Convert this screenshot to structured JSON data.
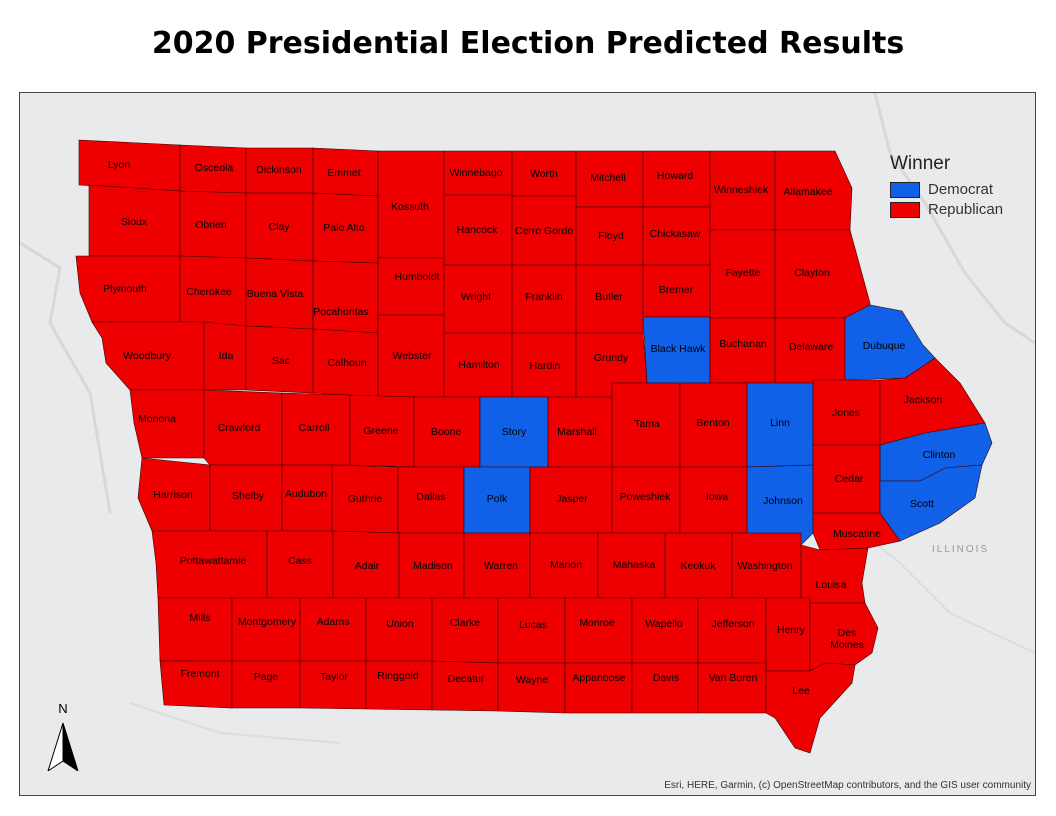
{
  "title": "2020 Presidential Election Predicted Results",
  "legend": {
    "title": "Winner",
    "items": [
      {
        "label": "Democrat",
        "color": "#1060e8"
      },
      {
        "label": "Republican",
        "color": "#ee0000"
      }
    ]
  },
  "north_label": "N",
  "neighbor_state_label": "ILLINOIS",
  "attribution": "Esri, HERE, Garmin, (c) OpenStreetMap contributors, and the GIS user community",
  "counties": [
    {
      "name": "Lyon",
      "winner": "Republican"
    },
    {
      "name": "Osceola",
      "winner": "Republican"
    },
    {
      "name": "Dickinson",
      "winner": "Republican"
    },
    {
      "name": "Emmet",
      "winner": "Republican"
    },
    {
      "name": "Kossuth",
      "winner": "Republican"
    },
    {
      "name": "Winnebago",
      "winner": "Republican"
    },
    {
      "name": "Worth",
      "winner": "Republican"
    },
    {
      "name": "Mitchell",
      "winner": "Republican"
    },
    {
      "name": "Howard",
      "winner": "Republican"
    },
    {
      "name": "Winneshiek",
      "winner": "Republican"
    },
    {
      "name": "Allamakee",
      "winner": "Republican"
    },
    {
      "name": "Sioux",
      "winner": "Republican"
    },
    {
      "name": "Obrien",
      "winner": "Republican"
    },
    {
      "name": "Clay",
      "winner": "Republican"
    },
    {
      "name": "Palo Alto",
      "winner": "Republican"
    },
    {
      "name": "Hancock",
      "winner": "Republican"
    },
    {
      "name": "Cerro Gordo",
      "winner": "Republican"
    },
    {
      "name": "Floyd",
      "winner": "Republican"
    },
    {
      "name": "Chickasaw",
      "winner": "Republican"
    },
    {
      "name": "Fayette",
      "winner": "Republican"
    },
    {
      "name": "Clayton",
      "winner": "Republican"
    },
    {
      "name": "Plymouth",
      "winner": "Republican"
    },
    {
      "name": "Cherokee",
      "winner": "Republican"
    },
    {
      "name": "Buena Vista",
      "winner": "Republican"
    },
    {
      "name": "Pocahontas",
      "winner": "Republican"
    },
    {
      "name": "Humboldt",
      "winner": "Republican"
    },
    {
      "name": "Wright",
      "winner": "Republican"
    },
    {
      "name": "Franklin",
      "winner": "Republican"
    },
    {
      "name": "Butler",
      "winner": "Republican"
    },
    {
      "name": "Bremer",
      "winner": "Republican"
    },
    {
      "name": "Black Hawk",
      "winner": "Democrat"
    },
    {
      "name": "Buchanan",
      "winner": "Republican"
    },
    {
      "name": "Delaware",
      "winner": "Republican"
    },
    {
      "name": "Dubuque",
      "winner": "Democrat"
    },
    {
      "name": "Woodbury",
      "winner": "Republican"
    },
    {
      "name": "Ida",
      "winner": "Republican"
    },
    {
      "name": "Sac",
      "winner": "Republican"
    },
    {
      "name": "Calhoun",
      "winner": "Republican"
    },
    {
      "name": "Webster",
      "winner": "Republican"
    },
    {
      "name": "Hamilton",
      "winner": "Republican"
    },
    {
      "name": "Hardin",
      "winner": "Republican"
    },
    {
      "name": "Grundy",
      "winner": "Republican"
    },
    {
      "name": "Monona",
      "winner": "Republican"
    },
    {
      "name": "Crawford",
      "winner": "Republican"
    },
    {
      "name": "Carroll",
      "winner": "Republican"
    },
    {
      "name": "Greene",
      "winner": "Republican"
    },
    {
      "name": "Boone",
      "winner": "Republican"
    },
    {
      "name": "Story",
      "winner": "Democrat"
    },
    {
      "name": "Marshall",
      "winner": "Republican"
    },
    {
      "name": "Tama",
      "winner": "Republican"
    },
    {
      "name": "Benton",
      "winner": "Republican"
    },
    {
      "name": "Linn",
      "winner": "Democrat"
    },
    {
      "name": "Jones",
      "winner": "Republican"
    },
    {
      "name": "Jackson",
      "winner": "Republican"
    },
    {
      "name": "Clinton",
      "winner": "Democrat"
    },
    {
      "name": "Harrison",
      "winner": "Republican"
    },
    {
      "name": "Shelby",
      "winner": "Republican"
    },
    {
      "name": "Audubon",
      "winner": "Republican"
    },
    {
      "name": "Guthrie",
      "winner": "Republican"
    },
    {
      "name": "Dallas",
      "winner": "Republican"
    },
    {
      "name": "Polk",
      "winner": "Democrat"
    },
    {
      "name": "Jasper",
      "winner": "Republican"
    },
    {
      "name": "Poweshiek",
      "winner": "Republican"
    },
    {
      "name": "Iowa",
      "winner": "Republican"
    },
    {
      "name": "Johnson",
      "winner": "Democrat"
    },
    {
      "name": "Cedar",
      "winner": "Republican"
    },
    {
      "name": "Scott",
      "winner": "Democrat"
    },
    {
      "name": "Muscatine",
      "winner": "Republican"
    },
    {
      "name": "Pottawattamie",
      "winner": "Republican"
    },
    {
      "name": "Cass",
      "winner": "Republican"
    },
    {
      "name": "Adair",
      "winner": "Republican"
    },
    {
      "name": "Madison",
      "winner": "Republican"
    },
    {
      "name": "Warren",
      "winner": "Republican"
    },
    {
      "name": "Marion",
      "winner": "Republican"
    },
    {
      "name": "Mahaska",
      "winner": "Republican"
    },
    {
      "name": "Keokuk",
      "winner": "Republican"
    },
    {
      "name": "Washington",
      "winner": "Republican"
    },
    {
      "name": "Louisa",
      "winner": "Republican"
    },
    {
      "name": "Mills",
      "winner": "Republican"
    },
    {
      "name": "Montgomery",
      "winner": "Republican"
    },
    {
      "name": "Adams",
      "winner": "Republican"
    },
    {
      "name": "Union",
      "winner": "Republican"
    },
    {
      "name": "Clarke",
      "winner": "Republican"
    },
    {
      "name": "Lucas",
      "winner": "Republican"
    },
    {
      "name": "Monroe",
      "winner": "Republican"
    },
    {
      "name": "Wapello",
      "winner": "Republican"
    },
    {
      "name": "Jefferson",
      "winner": "Republican"
    },
    {
      "name": "Henry",
      "winner": "Republican"
    },
    {
      "name": "Des Moines",
      "winner": "Republican"
    },
    {
      "name": "Fremont",
      "winner": "Republican"
    },
    {
      "name": "Page",
      "winner": "Republican"
    },
    {
      "name": "Taylor",
      "winner": "Republican"
    },
    {
      "name": "Ringgold",
      "winner": "Republican"
    },
    {
      "name": "Decatur",
      "winner": "Republican"
    },
    {
      "name": "Wayne",
      "winner": "Republican"
    },
    {
      "name": "Appanoose",
      "winner": "Republican"
    },
    {
      "name": "Davis",
      "winner": "Republican"
    },
    {
      "name": "Van Buren",
      "winner": "Republican"
    },
    {
      "name": "Lee",
      "winner": "Republican"
    }
  ]
}
